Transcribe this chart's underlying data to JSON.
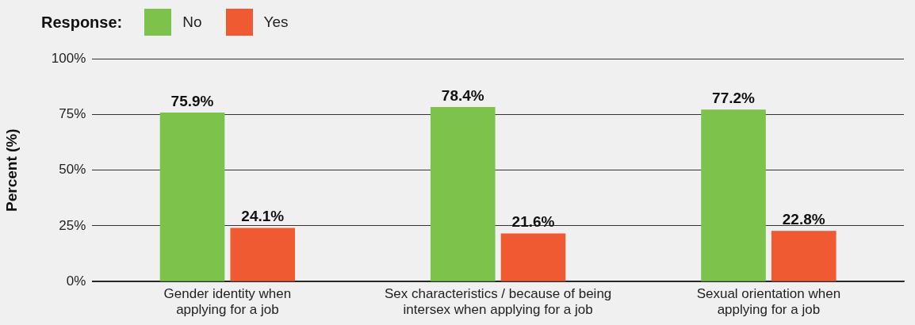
{
  "chart_data": {
    "type": "bar",
    "legend_title": "Response:",
    "legend": "top left",
    "ylabel": "Percent (%)",
    "categories": [
      "Gender identity when applying for a job",
      "Sex characteristics / because of being intersex when applying for a job",
      "Sexual orientation when applying for a job"
    ],
    "series": [
      {
        "name": "No",
        "color": "#7dc24b",
        "values": [
          75.9,
          78.4,
          77.2
        ],
        "value_labels": [
          "75.9%",
          "78.4%",
          "77.2%"
        ]
      },
      {
        "name": "Yes",
        "color": "#f05a32",
        "values": [
          24.1,
          21.6,
          22.8
        ],
        "value_labels": [
          "24.1%",
          "21.6%",
          "22.8%"
        ]
      }
    ],
    "ylim": [
      0,
      100
    ],
    "yticks": [
      {
        "value": 0,
        "label": "0%"
      },
      {
        "value": 25,
        "label": "25%"
      },
      {
        "value": 50,
        "label": "50%"
      },
      {
        "value": 75,
        "label": "75%"
      },
      {
        "value": 100,
        "label": "100%"
      }
    ],
    "grid": "y"
  }
}
